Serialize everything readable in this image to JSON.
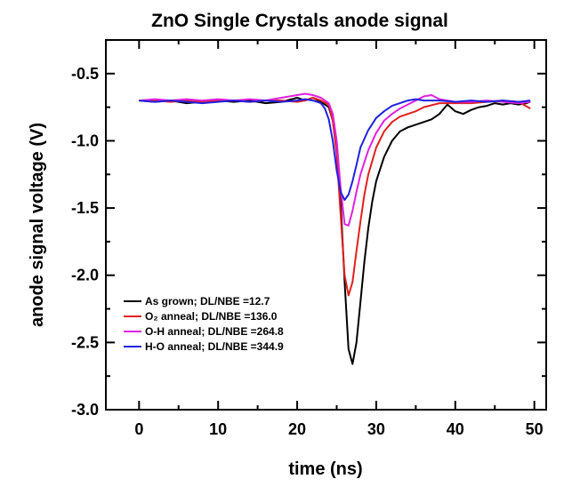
{
  "chart_data": {
    "type": "line",
    "title": "ZnO Single Crystals anode signal",
    "xlabel": "time (ns)",
    "ylabel": "anode signal voltage (V)",
    "xlim": [
      -4.2,
      51.5
    ],
    "ylim": [
      -3.0,
      -0.25
    ],
    "xticks": [
      0,
      10,
      20,
      30,
      40,
      50
    ],
    "yticks": [
      -0.5,
      -1.0,
      -1.5,
      -2.0,
      -2.5,
      -3.0
    ],
    "xtick_labels": [
      "0",
      "10",
      "20",
      "30",
      "40",
      "50"
    ],
    "ytick_labels": [
      "-0.5",
      "-1.0",
      "-1.5",
      "-2.0",
      "-2.5",
      "-3.0"
    ],
    "grid": false,
    "legend_position": "lower-left",
    "series": [
      {
        "name": "As grown; DL/NBE =12.7",
        "color": "#000000",
        "x": [
          0,
          2,
          4,
          6,
          8,
          10,
          12,
          14,
          16,
          18,
          20,
          21,
          22,
          23,
          24,
          24.5,
          25,
          25.5,
          26,
          26.5,
          27,
          27.5,
          28,
          28.5,
          29,
          29.5,
          30,
          31,
          32,
          33,
          34,
          35,
          36,
          37,
          38,
          39,
          40,
          41,
          42,
          43,
          44,
          45,
          46,
          47,
          48,
          49,
          49.5
        ],
        "y": [
          -0.7,
          -0.71,
          -0.7,
          -0.72,
          -0.71,
          -0.7,
          -0.71,
          -0.7,
          -0.72,
          -0.71,
          -0.68,
          -0.7,
          -0.68,
          -0.71,
          -0.75,
          -0.85,
          -1.05,
          -1.45,
          -2.05,
          -2.55,
          -2.66,
          -2.5,
          -2.2,
          -1.9,
          -1.65,
          -1.45,
          -1.3,
          -1.12,
          -1.0,
          -0.93,
          -0.9,
          -0.88,
          -0.86,
          -0.84,
          -0.8,
          -0.73,
          -0.78,
          -0.8,
          -0.77,
          -0.75,
          -0.74,
          -0.72,
          -0.73,
          -0.72,
          -0.73,
          -0.72,
          -0.71
        ]
      },
      {
        "name": "O₂ anneal; DL/NBE =136.0",
        "color": "#e02020",
        "x": [
          0,
          2,
          4,
          6,
          8,
          10,
          12,
          14,
          16,
          18,
          20,
          21,
          22,
          23,
          24,
          24.5,
          25,
          25.5,
          26,
          26.5,
          27,
          27.5,
          28,
          28.5,
          29,
          30,
          31,
          32,
          33,
          34,
          35,
          36,
          38,
          40,
          42,
          44,
          46,
          48,
          49.5
        ],
        "y": [
          -0.7,
          -0.7,
          -0.71,
          -0.7,
          -0.71,
          -0.7,
          -0.7,
          -0.71,
          -0.7,
          -0.7,
          -0.71,
          -0.7,
          -0.68,
          -0.7,
          -0.73,
          -0.85,
          -1.1,
          -1.55,
          -2.0,
          -2.15,
          -2.05,
          -1.82,
          -1.6,
          -1.4,
          -1.25,
          -1.05,
          -0.93,
          -0.86,
          -0.82,
          -0.8,
          -0.78,
          -0.75,
          -0.72,
          -0.72,
          -0.72,
          -0.71,
          -0.7,
          -0.71,
          -0.76
        ]
      },
      {
        "name": "O-H anneal; DL/NBE =264.8",
        "color": "#e020e0",
        "x": [
          0,
          2,
          4,
          6,
          8,
          10,
          12,
          14,
          16,
          18,
          20,
          21,
          22,
          23,
          24,
          24.5,
          25,
          25.5,
          26,
          26.5,
          27,
          27.5,
          28,
          29,
          30,
          31,
          32,
          33,
          34,
          35,
          36,
          37,
          38,
          40,
          42,
          44,
          46,
          48,
          49.5
        ],
        "y": [
          -0.7,
          -0.69,
          -0.7,
          -0.69,
          -0.7,
          -0.69,
          -0.7,
          -0.69,
          -0.7,
          -0.68,
          -0.66,
          -0.65,
          -0.66,
          -0.68,
          -0.72,
          -0.8,
          -1.0,
          -1.35,
          -1.62,
          -1.63,
          -1.52,
          -1.38,
          -1.25,
          -1.07,
          -0.94,
          -0.85,
          -0.8,
          -0.76,
          -0.73,
          -0.7,
          -0.67,
          -0.66,
          -0.69,
          -0.71,
          -0.71,
          -0.7,
          -0.71,
          -0.72,
          -0.71
        ]
      },
      {
        "name": "H-O anneal; DL/NBE =344.9",
        "color": "#2020e0",
        "x": [
          0,
          2,
          4,
          6,
          8,
          10,
          12,
          14,
          16,
          18,
          20,
          21,
          22,
          23,
          23.5,
          24,
          24.5,
          25,
          25.5,
          26,
          26.5,
          27,
          27.5,
          28,
          29,
          30,
          31,
          32,
          33,
          34,
          35,
          36,
          38,
          40,
          42,
          44,
          46,
          48,
          49.5
        ],
        "y": [
          -0.7,
          -0.71,
          -0.7,
          -0.71,
          -0.72,
          -0.71,
          -0.7,
          -0.71,
          -0.7,
          -0.71,
          -0.7,
          -0.69,
          -0.7,
          -0.72,
          -0.76,
          -0.84,
          -1.0,
          -1.22,
          -1.38,
          -1.44,
          -1.4,
          -1.3,
          -1.18,
          -1.05,
          -0.92,
          -0.83,
          -0.78,
          -0.74,
          -0.72,
          -0.7,
          -0.69,
          -0.7,
          -0.7,
          -0.71,
          -0.7,
          -0.71,
          -0.7,
          -0.71,
          -0.7
        ]
      }
    ]
  },
  "legend": {
    "items": [
      {
        "label": "As grown;    DL/NBE =12.7",
        "color": "#000000"
      },
      {
        "label": "O₂ anneal;  DL/NBE =136.0",
        "color": "#e02020"
      },
      {
        "label": "O-H anneal; DL/NBE =264.8",
        "color": "#e020e0"
      },
      {
        "label": "H-O anneal; DL/NBE =344.9",
        "color": "#2020e0"
      }
    ]
  }
}
